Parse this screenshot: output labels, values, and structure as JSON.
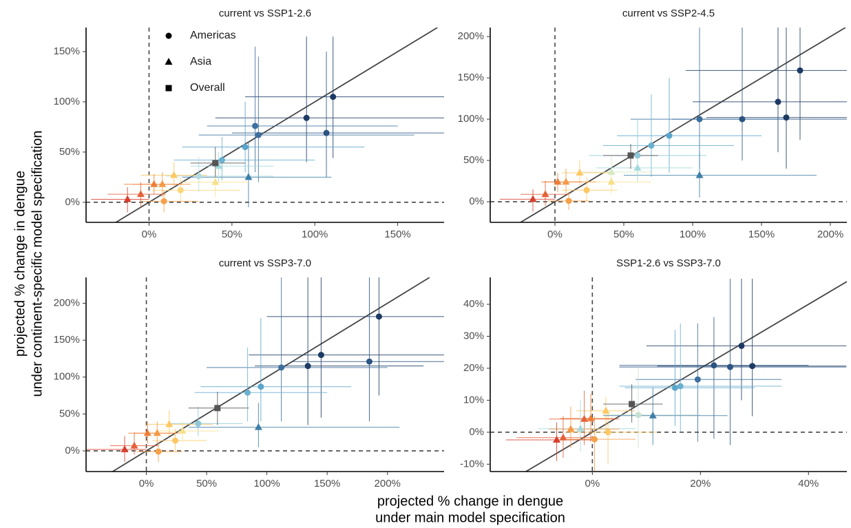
{
  "xlabel": [
    "projected % change in dengue",
    "under main model specification"
  ],
  "ylabel": [
    "projected % change in dengue",
    "under continent-specific model specification"
  ],
  "legend": [
    {
      "name": "Americas",
      "marker": "circle"
    },
    {
      "name": "Asia",
      "marker": "triangle"
    },
    {
      "name": "Overall",
      "marker": "square"
    }
  ],
  "chart_data": [
    {
      "type": "scatter",
      "title": "current vs SSP1-2.6",
      "xlim": [
        -38,
        178
      ],
      "ylim": [
        -20,
        174
      ],
      "xticks": [
        {
          "value": 0,
          "label": "0%"
        },
        {
          "value": 50,
          "label": "50%"
        },
        {
          "value": 100,
          "label": "100%"
        },
        {
          "value": 150,
          "label": "150%"
        }
      ],
      "yticks": [
        {
          "value": 0,
          "label": "0%"
        },
        {
          "value": 50,
          "label": "50%"
        },
        {
          "value": 100,
          "label": "100%"
        },
        {
          "value": 150,
          "label": "150%"
        }
      ],
      "series": [
        {
          "marker": "circle",
          "x": [
            111,
            95,
            107,
            64,
            66,
            58,
            44,
            30,
            19,
            9
          ],
          "y": [
            105,
            84,
            69,
            76,
            67,
            55,
            42,
            26,
            12,
            1
          ],
          "x_low": [
            58,
            40,
            50,
            35,
            30,
            20,
            15,
            10,
            2,
            -5
          ],
          "x_high": [
            178,
            178,
            178,
            150,
            160,
            130,
            100,
            75,
            55,
            30
          ],
          "y_low": [
            44,
            40,
            25,
            30,
            20,
            30,
            22,
            10,
            0,
            -10
          ],
          "y_high": [
            165,
            165,
            150,
            155,
            145,
            100,
            65,
            45,
            25,
            12
          ],
          "colors": [
            "#1d3a63",
            "#1d3a63",
            "#2c5482",
            "#3d6f9e",
            "#3d6f9e",
            "#5aa5cc",
            "#6ab0cf",
            "#b4dae0",
            "#fcd77a",
            "#f6a04a"
          ]
        },
        {
          "marker": "triangle",
          "x": [
            60,
            42,
            40,
            15,
            8,
            3,
            -5,
            -13
          ],
          "y": [
            25,
            36,
            20,
            27,
            18,
            18,
            8,
            3
          ],
          "x_low": [
            20,
            25,
            20,
            -5,
            -10,
            -15,
            -25,
            -35
          ],
          "x_high": [
            110,
            75,
            60,
            35,
            25,
            20,
            10,
            0
          ],
          "y_low": [
            -5,
            20,
            5,
            15,
            5,
            8,
            -5,
            -10
          ],
          "y_high": [
            60,
            50,
            35,
            40,
            30,
            28,
            20,
            15
          ],
          "colors": [
            "#3f7fa6",
            "#a3d9dc",
            "#f7e08c",
            "#fcc862",
            "#f59a45",
            "#ef7d35",
            "#e4613a",
            "#d7402f"
          ]
        },
        {
          "marker": "square",
          "x": [
            40
          ],
          "y": [
            39
          ],
          "x_low": [
            25
          ],
          "x_high": [
            58
          ],
          "y_low": [
            25
          ],
          "y_high": [
            55
          ],
          "colors": [
            "#555555"
          ]
        }
      ]
    },
    {
      "type": "scatter",
      "title": "current vs SSP2-4.5",
      "xlim": [
        -47,
        212
      ],
      "ylim": [
        -25,
        211
      ],
      "xticks": [
        {
          "value": 0,
          "label": "0%"
        },
        {
          "value": 50,
          "label": "50%"
        },
        {
          "value": 100,
          "label": "100%"
        },
        {
          "value": 150,
          "label": "150%"
        },
        {
          "value": 200,
          "label": "200%"
        }
      ],
      "yticks": [
        {
          "value": 0,
          "label": "0%"
        },
        {
          "value": 50,
          "label": "50%"
        },
        {
          "value": 100,
          "label": "100%"
        },
        {
          "value": 150,
          "label": "150%"
        },
        {
          "value": 200,
          "label": "200%"
        }
      ],
      "series": [
        {
          "marker": "circle",
          "x": [
            178,
            162,
            168,
            136,
            105,
            83,
            70,
            60,
            23,
            10
          ],
          "y": [
            159,
            121,
            102,
            100,
            100,
            80,
            68,
            56,
            14,
            1
          ],
          "x_low": [
            95,
            100,
            110,
            85,
            55,
            45,
            35,
            25,
            5,
            -5
          ],
          "x_high": [
            212,
            212,
            212,
            212,
            170,
            150,
            130,
            110,
            45,
            25
          ],
          "y_low": [
            75,
            60,
            40,
            50,
            40,
            35,
            30,
            25,
            0,
            -10
          ],
          "y_high": [
            211,
            211,
            211,
            211,
            211,
            150,
            130,
            100,
            30,
            12
          ],
          "colors": [
            "#1d3a63",
            "#1d3a63",
            "#1d3a63",
            "#2c5482",
            "#3d6f9e",
            "#5aa5cc",
            "#6ab0cf",
            "#8cc8d8",
            "#fcc862",
            "#f6a04a"
          ]
        },
        {
          "marker": "triangle",
          "x": [
            105,
            60,
            41,
            41,
            18,
            8,
            2,
            -7,
            -16
          ],
          "y": [
            32,
            41,
            36,
            24,
            35,
            24,
            24,
            9,
            3
          ],
          "x_low": [
            50,
            30,
            20,
            20,
            5,
            -8,
            -10,
            -25,
            -40
          ],
          "x_high": [
            190,
            100,
            70,
            70,
            40,
            30,
            20,
            10,
            0
          ],
          "y_low": [
            5,
            25,
            20,
            10,
            20,
            10,
            12,
            -5,
            -12
          ],
          "y_high": [
            60,
            60,
            55,
            40,
            50,
            40,
            35,
            25,
            15
          ],
          "colors": [
            "#3f7fa6",
            "#a3d9dc",
            "#d6e9c4",
            "#f7e08c",
            "#fcc862",
            "#f59a45",
            "#ef7d35",
            "#e4613a",
            "#d7402f"
          ]
        },
        {
          "marker": "square",
          "x": [
            55
          ],
          "y": [
            56
          ],
          "x_low": [
            35
          ],
          "x_high": [
            75
          ],
          "y_low": [
            40
          ],
          "y_high": [
            70
          ],
          "colors": [
            "#555555"
          ]
        }
      ]
    },
    {
      "type": "scatter",
      "title": "current vs SSP3-7.0",
      "xlim": [
        -50,
        247
      ],
      "ylim": [
        -28,
        235
      ],
      "xticks": [
        {
          "value": 0,
          "label": "0%"
        },
        {
          "value": 50,
          "label": "50%"
        },
        {
          "value": 100,
          "label": "100%"
        },
        {
          "value": 150,
          "label": "150%"
        },
        {
          "value": 200,
          "label": "200%"
        }
      ],
      "yticks": [
        {
          "value": 0,
          "label": "0%"
        },
        {
          "value": 50,
          "label": "50%"
        },
        {
          "value": 100,
          "label": "100%"
        },
        {
          "value": 150,
          "label": "150%"
        },
        {
          "value": 200,
          "label": "200%"
        }
      ],
      "series": [
        {
          "marker": "circle",
          "x": [
            193,
            145,
            134,
            185,
            112,
            95,
            84,
            43,
            24,
            10
          ],
          "y": [
            182,
            130,
            115,
            121,
            113,
            87,
            79,
            37,
            14,
            -1
          ],
          "x_low": [
            100,
            85,
            90,
            120,
            50,
            45,
            40,
            20,
            5,
            -8
          ],
          "x_high": [
            247,
            247,
            230,
            247,
            200,
            170,
            150,
            80,
            50,
            30
          ],
          "y_low": [
            75,
            45,
            35,
            40,
            40,
            40,
            40,
            20,
            0,
            -15
          ],
          "y_high": [
            235,
            235,
            235,
            235,
            235,
            180,
            140,
            60,
            30,
            12
          ],
          "colors": [
            "#1d3a63",
            "#1d3a63",
            "#1d3a63",
            "#2c5482",
            "#3d6f9e",
            "#5aa5cc",
            "#6ab0cf",
            "#8cc8d8",
            "#fcc862",
            "#f6a04a"
          ]
        },
        {
          "marker": "triangle",
          "x": [
            93,
            19,
            30,
            9,
            1,
            -10,
            -18
          ],
          "y": [
            32,
            36,
            27,
            24,
            24,
            7,
            2
          ],
          "x_low": [
            35,
            0,
            10,
            -10,
            -15,
            -30,
            -50
          ],
          "x_high": [
            210,
            55,
            60,
            30,
            25,
            10,
            0
          ],
          "y_low": [
            5,
            20,
            15,
            10,
            10,
            -5,
            -15
          ],
          "y_high": [
            65,
            55,
            40,
            40,
            40,
            25,
            20
          ],
          "colors": [
            "#3f7fa6",
            "#fcc862",
            "#f7e08c",
            "#f59a45",
            "#ef7d35",
            "#e4613a",
            "#d7402f"
          ]
        },
        {
          "marker": "square",
          "x": [
            59
          ],
          "y": [
            58
          ],
          "x_low": [
            35
          ],
          "x_high": [
            85
          ],
          "y_low": [
            35
          ],
          "y_high": [
            80
          ],
          "colors": [
            "#555555"
          ]
        }
      ]
    },
    {
      "type": "scatter",
      "title": "SSP1-2.6 vs SSP3-7.0",
      "xlim": [
        -18.9,
        47.1
      ],
      "ylim": [
        -12.3,
        48.4
      ],
      "xticks": [
        {
          "value": 0,
          "label": "0%"
        },
        {
          "value": 20,
          "label": "20%"
        },
        {
          "value": 40,
          "label": "40%"
        }
      ],
      "yticks": [
        {
          "value": -10,
          "label": "-10%"
        },
        {
          "value": 0,
          "label": "0%"
        },
        {
          "value": 10,
          "label": "10%"
        },
        {
          "value": 20,
          "label": "20%"
        },
        {
          "value": 30,
          "label": "30%"
        },
        {
          "value": 40,
          "label": "40%"
        }
      ],
      "series": [
        {
          "marker": "circle",
          "x": [
            27.6,
            29.6,
            25.5,
            22.5,
            19.5,
            15.3,
            16.3,
            8.5,
            2.9,
            0.4
          ],
          "y": [
            27,
            20.7,
            20.4,
            20.9,
            16.5,
            13.9,
            14.4,
            5.4,
            0,
            -2.2
          ],
          "x_low": [
            10,
            12,
            5,
            5,
            8,
            6,
            5,
            2,
            -5,
            -5
          ],
          "x_high": [
            47,
            47,
            47,
            40,
            35,
            30,
            35,
            20,
            12,
            8
          ],
          "y_low": [
            10,
            5,
            -4,
            -2,
            -3,
            2,
            0,
            -5,
            -10,
            -12
          ],
          "y_high": [
            48,
            48,
            48,
            36,
            34,
            32,
            34,
            20,
            6,
            5
          ],
          "colors": [
            "#1d3a63",
            "#1d3a63",
            "#2c5482",
            "#2c5482",
            "#3d6f9e",
            "#5aa5cc",
            "#6ab0cf",
            "#c8e0d0",
            "#fcc862",
            "#f6a04a"
          ]
        },
        {
          "marker": "triangle",
          "x": [
            11.2,
            2.5,
            -0.3,
            -1.5,
            -2.2,
            -4,
            -5.4,
            -6.6
          ],
          "y": [
            5.2,
            6.7,
            4.3,
            4.1,
            1.1,
            1,
            -1.7,
            -2.4
          ],
          "x_low": [
            2,
            -3,
            -6,
            -8,
            -10,
            -8,
            -14,
            -16
          ],
          "x_high": [
            25,
            8,
            4,
            5,
            8,
            5,
            0,
            0
          ],
          "y_low": [
            -4,
            0,
            -3,
            -4,
            -6,
            -5,
            -8,
            -9
          ],
          "y_high": [
            14,
            11,
            12,
            13,
            10,
            8,
            5,
            3
          ],
          "colors": [
            "#3f7fa6",
            "#fcc862",
            "#ef7d35",
            "#e4613a",
            "#a3d9dc",
            "#f59a45",
            "#e4613a",
            "#d7402f"
          ]
        },
        {
          "marker": "square",
          "x": [
            7.3
          ],
          "y": [
            8.8
          ],
          "x_low": [
            2
          ],
          "x_high": [
            13
          ],
          "y_low": [
            3
          ],
          "y_high": [
            15
          ],
          "colors": [
            "#555555"
          ]
        }
      ]
    }
  ]
}
